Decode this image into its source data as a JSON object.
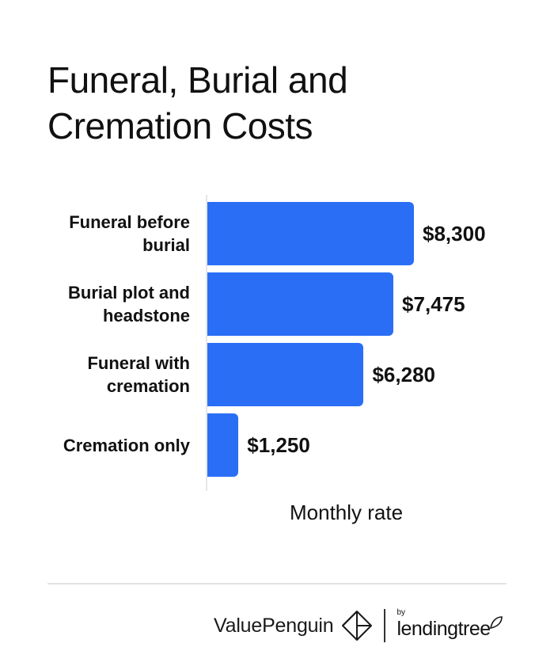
{
  "title": [
    "Funeral, Burial and",
    "Cremation Costs"
  ],
  "chart_data": {
    "type": "bar",
    "orientation": "horizontal",
    "categories": [
      [
        "Funeral before",
        "burial"
      ],
      [
        "Burial plot and",
        "headstone"
      ],
      [
        "Funeral with",
        "cremation"
      ],
      [
        "Cremation only"
      ]
    ],
    "values": [
      8300,
      7475,
      6280,
      1250
    ],
    "value_labels": [
      "$8,300",
      "$7,475",
      "$6,280",
      "$1,250"
    ],
    "xlabel": "Monthly rate",
    "xlim": [
      0,
      8300
    ],
    "grid": false,
    "bar_color": "#2a6ef6"
  },
  "footer": {
    "brand": "ValuePenguin",
    "by": "by",
    "partner": "lendingtree"
  }
}
